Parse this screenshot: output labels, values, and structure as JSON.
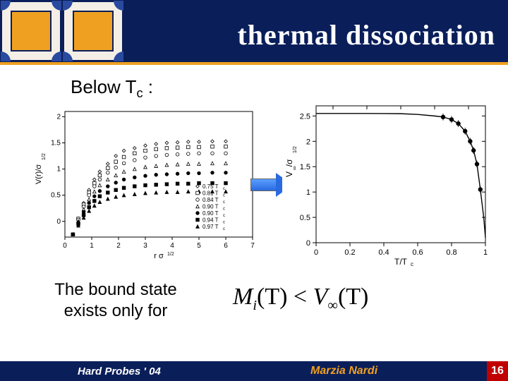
{
  "title": "thermal dissociation",
  "heading": "Below T",
  "heading_sub": "c",
  "heading_tail": " :",
  "bound_state_l1": "The bound state",
  "bound_state_l2": "exists only for",
  "formula": {
    "M": "M",
    "i": "i",
    "T1": "(T)",
    "lt": " < ",
    "V": "V",
    "inf": "∞",
    "T2": "(T)"
  },
  "footer": {
    "left": "Hard Probes ' 04",
    "center": "Marzia Nardi",
    "page": "16"
  },
  "colors": {
    "navy": "#0a1e5a",
    "orange": "#f0a020",
    "red": "#c00000",
    "arrow1": "#5aa0ff",
    "arrow2": "#2a6ae0"
  },
  "left_chart": {
    "type": "scatter",
    "xlabel": "r σ^{1/2}",
    "ylabel": "V(r)/σ^{1/2}",
    "xlim": [
      0,
      7
    ],
    "xticks": [
      0,
      1,
      2,
      3,
      4,
      5,
      6,
      7
    ],
    "ylim": [
      -0.3,
      2.1
    ],
    "yticks": [
      0,
      0.5,
      1,
      1.5,
      2
    ],
    "x_for_series": [
      0.3,
      0.5,
      0.7,
      0.9,
      1.1,
      1.3,
      1.6,
      1.9,
      2.2,
      2.6,
      3.0,
      3.4,
      3.8,
      4.2,
      4.6,
      5.0,
      5.5,
      6.0
    ],
    "series": [
      {
        "label": "0.75 T_c",
        "marker": "diamond-open",
        "fill": "#ffffff",
        "stroke": "#000",
        "y": [
          -0.25,
          0.05,
          0.35,
          0.6,
          0.8,
          0.95,
          1.1,
          1.25,
          1.35,
          1.4,
          1.45,
          1.48,
          1.5,
          1.51,
          1.52,
          1.52,
          1.53,
          1.53
        ]
      },
      {
        "label": "0.81 T_c",
        "marker": "square-open",
        "fill": "#ffffff",
        "stroke": "#000",
        "y": [
          -0.25,
          0.05,
          0.32,
          0.55,
          0.73,
          0.88,
          1.02,
          1.14,
          1.23,
          1.3,
          1.35,
          1.38,
          1.4,
          1.41,
          1.42,
          1.42,
          1.43,
          1.43
        ]
      },
      {
        "label": "0.84 T_c",
        "marker": "circle-open",
        "fill": "#ffffff",
        "stroke": "#000",
        "y": [
          -0.25,
          0.03,
          0.28,
          0.5,
          0.67,
          0.8,
          0.93,
          1.03,
          1.11,
          1.17,
          1.22,
          1.25,
          1.27,
          1.28,
          1.29,
          1.3,
          1.3,
          1.3
        ]
      },
      {
        "label": "0.90 T_c",
        "marker": "triangle-open",
        "fill": "#ffffff",
        "stroke": "#000",
        "y": [
          -0.25,
          0.0,
          0.23,
          0.42,
          0.57,
          0.69,
          0.8,
          0.88,
          0.95,
          1.0,
          1.04,
          1.06,
          1.08,
          1.09,
          1.1,
          1.1,
          1.11,
          1.11
        ]
      },
      {
        "label": "0.90 T_c",
        "marker": "circle",
        "fill": "#000",
        "stroke": "#000",
        "y": [
          -0.25,
          -0.02,
          0.18,
          0.35,
          0.48,
          0.58,
          0.67,
          0.74,
          0.8,
          0.84,
          0.87,
          0.89,
          0.9,
          0.91,
          0.92,
          0.92,
          0.93,
          0.93
        ]
      },
      {
        "label": "0.94 T_c",
        "marker": "square",
        "fill": "#000",
        "stroke": "#000",
        "y": [
          -0.25,
          -0.05,
          0.12,
          0.27,
          0.39,
          0.48,
          0.55,
          0.6,
          0.64,
          0.67,
          0.69,
          0.7,
          0.71,
          0.72,
          0.72,
          0.73,
          0.73,
          0.73
        ]
      },
      {
        "label": "0.97 T_c",
        "marker": "triangle",
        "fill": "#000",
        "stroke": "#000",
        "y": [
          -0.25,
          -0.08,
          0.07,
          0.2,
          0.3,
          0.37,
          0.43,
          0.47,
          0.5,
          0.52,
          0.54,
          0.55,
          0.56,
          0.56,
          0.57,
          0.57,
          0.57,
          0.57
        ]
      }
    ]
  },
  "right_chart": {
    "type": "line-points",
    "xlabel": "T/T_c",
    "ylabel": "V_∞/σ^{1/2}",
    "xlim": [
      0,
      1
    ],
    "xticks": [
      0,
      0.2,
      0.4,
      0.6,
      0.8,
      1
    ],
    "ylim": [
      0,
      2.7
    ],
    "yticks": [
      0,
      0.5,
      1,
      1.5,
      2,
      2.5
    ],
    "points_x": [
      0.75,
      0.8,
      0.84,
      0.88,
      0.91,
      0.93,
      0.95,
      0.97
    ],
    "points_y": [
      2.48,
      2.43,
      2.35,
      2.2,
      2.0,
      1.82,
      1.55,
      1.05
    ],
    "curve_x": [
      0.0,
      0.1,
      0.2,
      0.3,
      0.4,
      0.5,
      0.6,
      0.7,
      0.75,
      0.8,
      0.84,
      0.88,
      0.91,
      0.93,
      0.95,
      0.97,
      0.99,
      1.0
    ],
    "curve_y": [
      2.55,
      2.55,
      2.55,
      2.55,
      2.548,
      2.545,
      2.53,
      2.5,
      2.48,
      2.43,
      2.35,
      2.2,
      2.0,
      1.82,
      1.55,
      1.05,
      0.5,
      0.1
    ],
    "marker_fill": "#000000",
    "line_color": "#000000"
  }
}
